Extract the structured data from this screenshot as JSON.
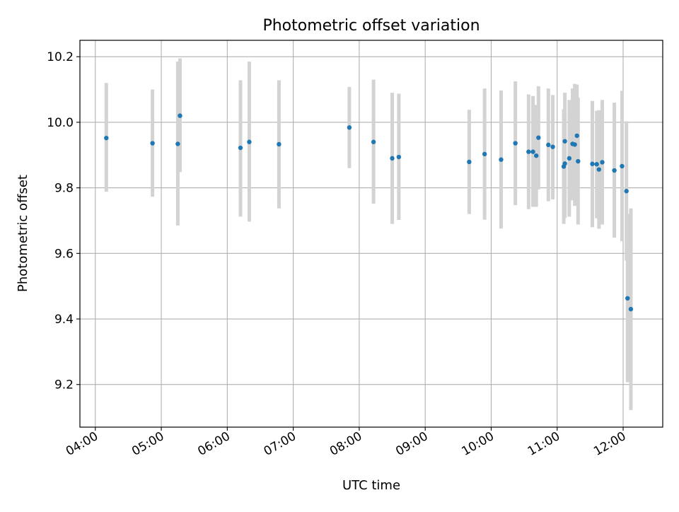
{
  "chart_data": {
    "type": "scatter",
    "title": "Photometric offset variation",
    "xlabel": "UTC time",
    "ylabel": "Photometric offset",
    "xlim": [
      "03:46",
      "12:36"
    ],
    "ylim": [
      9.07,
      10.25
    ],
    "grid": true,
    "x_ticks": [
      "04:00",
      "05:00",
      "06:00",
      "07:00",
      "08:00",
      "09:00",
      "10:00",
      "11:00",
      "12:00"
    ],
    "y_ticks": [
      9.2,
      9.4,
      9.6,
      9.8,
      10.0,
      10.2
    ],
    "marker_color": "#1f77b4",
    "errorbar_color": "#d3d3d3",
    "points": [
      {
        "t": "04:10",
        "y": 9.952,
        "lo": 9.788,
        "hi": 10.12
      },
      {
        "t": "04:52",
        "y": 9.936,
        "lo": 9.773,
        "hi": 10.1
      },
      {
        "t": "05:15",
        "y": 9.934,
        "lo": 9.685,
        "hi": 10.185
      },
      {
        "t": "05:17",
        "y": 10.02,
        "lo": 9.848,
        "hi": 10.195
      },
      {
        "t": "06:12",
        "y": 9.922,
        "lo": 9.712,
        "hi": 10.128
      },
      {
        "t": "06:20",
        "y": 9.94,
        "lo": 9.697,
        "hi": 10.185
      },
      {
        "t": "06:47",
        "y": 9.933,
        "lo": 9.737,
        "hi": 10.128
      },
      {
        "t": "07:51",
        "y": 9.984,
        "lo": 9.86,
        "hi": 10.108
      },
      {
        "t": "08:13",
        "y": 9.94,
        "lo": 9.752,
        "hi": 10.13
      },
      {
        "t": "08:30",
        "y": 9.89,
        "lo": 9.69,
        "hi": 10.09
      },
      {
        "t": "08:36",
        "y": 9.894,
        "lo": 9.702,
        "hi": 10.087
      },
      {
        "t": "09:40",
        "y": 9.879,
        "lo": 9.72,
        "hi": 10.038
      },
      {
        "t": "09:54",
        "y": 9.903,
        "lo": 9.703,
        "hi": 10.103
      },
      {
        "t": "10:09",
        "y": 9.886,
        "lo": 9.676,
        "hi": 10.097
      },
      {
        "t": "10:22",
        "y": 9.936,
        "lo": 9.747,
        "hi": 10.125
      },
      {
        "t": "10:34",
        "y": 9.91,
        "lo": 9.735,
        "hi": 10.085
      },
      {
        "t": "10:38",
        "y": 9.91,
        "lo": 9.742,
        "hi": 10.08
      },
      {
        "t": "10:41",
        "y": 9.898,
        "lo": 9.742,
        "hi": 10.053
      },
      {
        "t": "10:43",
        "y": 9.953,
        "lo": 9.795,
        "hi": 10.11
      },
      {
        "t": "10:52",
        "y": 9.931,
        "lo": 9.759,
        "hi": 10.103
      },
      {
        "t": "10:56",
        "y": 9.925,
        "lo": 9.765,
        "hi": 10.083
      },
      {
        "t": "11:06",
        "y": 9.865,
        "lo": 9.69,
        "hi": 10.04
      },
      {
        "t": "11:07",
        "y": 9.874,
        "lo": 9.708,
        "hi": 10.04
      },
      {
        "t": "11:07",
        "y": 9.942,
        "lo": 9.71,
        "hi": 10.09
      },
      {
        "t": "11:11",
        "y": 9.89,
        "lo": 9.712,
        "hi": 10.068
      },
      {
        "t": "11:14",
        "y": 9.934,
        "lo": 9.762,
        "hi": 10.103
      },
      {
        "t": "11:16",
        "y": 9.932,
        "lo": 9.745,
        "hi": 10.117
      },
      {
        "t": "11:18",
        "y": 9.959,
        "lo": 9.8,
        "hi": 10.115
      },
      {
        "t": "11:19",
        "y": 9.881,
        "lo": 9.688,
        "hi": 10.075
      },
      {
        "t": "11:32",
        "y": 9.873,
        "lo": 9.68,
        "hi": 10.065
      },
      {
        "t": "11:36",
        "y": 9.872,
        "lo": 9.707,
        "hi": 10.035
      },
      {
        "t": "11:38",
        "y": 9.856,
        "lo": 9.675,
        "hi": 10.037
      },
      {
        "t": "11:41",
        "y": 9.878,
        "lo": 9.688,
        "hi": 10.068
      },
      {
        "t": "11:52",
        "y": 9.853,
        "lo": 9.648,
        "hi": 10.06
      },
      {
        "t": "11:59",
        "y": 9.866,
        "lo": 9.637,
        "hi": 10.096
      },
      {
        "t": "12:03",
        "y": 9.79,
        "lo": 9.578,
        "hi": 10.003
      },
      {
        "t": "12:04",
        "y": 9.463,
        "lo": 9.207,
        "hi": 9.72
      },
      {
        "t": "12:07",
        "y": 9.43,
        "lo": 9.122,
        "hi": 9.737
      }
    ]
  }
}
